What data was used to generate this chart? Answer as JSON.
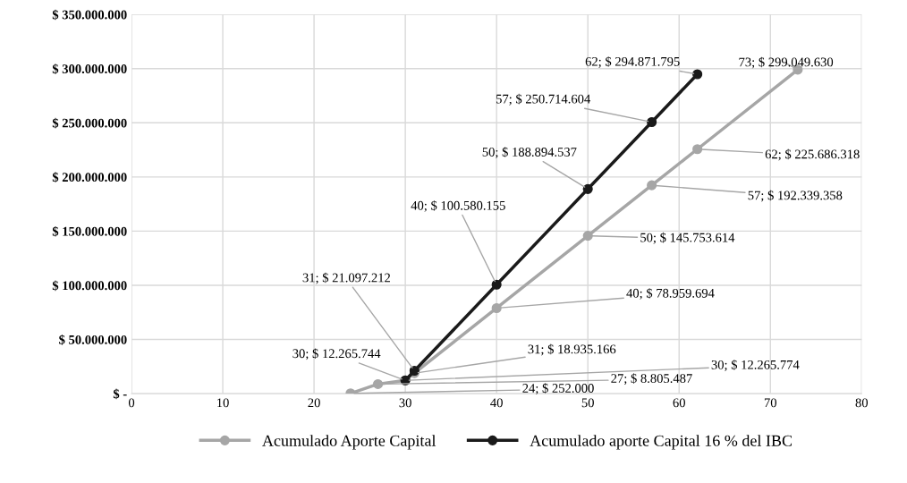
{
  "chart_data": {
    "type": "line",
    "series": [
      {
        "name": "Acumulado Aporte Capital",
        "color": "#a6a6a6",
        "x": [
          24,
          27,
          30,
          31,
          40,
          50,
          57,
          62,
          73
        ],
        "values": [
          252000,
          8805487,
          12265774,
          18935166,
          78959694,
          145753614,
          192339358,
          225686318,
          299049630
        ],
        "value_labels": [
          "24; $ 252.000",
          "27; $ 8.805.487",
          "30; $ 12.265.774",
          "31; $ 18.935.166",
          "40; $ 78.959.694",
          "50; $ 145.753.614",
          "57; $ 192.339.358",
          "62; $ 225.686.318",
          "73; $ 299.049.630"
        ]
      },
      {
        "name": "Acumulado aporte Capital 16 % del IBC",
        "color": "#1a1a1a",
        "x": [
          30,
          31,
          40,
          50,
          57,
          62
        ],
        "values": [
          12265744,
          21097212,
          100580155,
          188894537,
          250714604,
          294871795
        ],
        "value_labels": [
          "30; $ 12.265.744",
          "31; $ 21.097.212",
          "40; $ 100.580.155",
          "50; $ 188.894.537",
          "57; $ 250.714.604",
          "62; $ 294.871.795"
        ]
      }
    ],
    "xlim": [
      0,
      80
    ],
    "xticks": [
      0,
      10,
      20,
      30,
      40,
      50,
      60,
      70,
      80
    ],
    "ylim": [
      0,
      350000000
    ],
    "yticks": [
      {
        "value": 0,
        "label": "$ -"
      },
      {
        "value": 50000000,
        "label": "$ 50.000.000"
      },
      {
        "value": 100000000,
        "label": "$ 100.000.000"
      },
      {
        "value": 150000000,
        "label": "$ 150.000.000"
      },
      {
        "value": 200000000,
        "label": "$ 200.000.000"
      },
      {
        "value": 250000000,
        "label": "$ 250.000.000"
      },
      {
        "value": 300000000,
        "label": "$ 300.000.000"
      },
      {
        "value": 350000000,
        "label": "$ 350.000.000"
      }
    ],
    "grid": true,
    "legend": "bottom",
    "marker": "circle",
    "line_style": "solid"
  }
}
